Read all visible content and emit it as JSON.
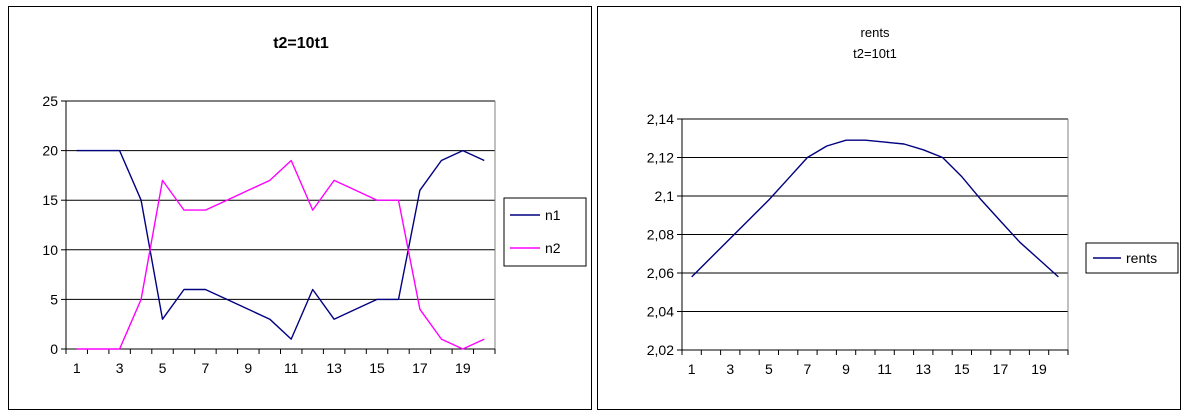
{
  "chart_data": [
    {
      "type": "line",
      "title": "t2=10t1",
      "x": [
        1,
        2,
        3,
        4,
        5,
        6,
        7,
        8,
        9,
        10,
        11,
        12,
        13,
        14,
        15,
        16,
        17,
        18,
        19,
        20
      ],
      "x_tick_labels": [
        "1",
        "3",
        "5",
        "7",
        "9",
        "11",
        "13",
        "15",
        "17",
        "19"
      ],
      "y_tick_labels": [
        "0",
        "5",
        "10",
        "15",
        "20",
        "25"
      ],
      "ylim": [
        0,
        25
      ],
      "grid": true,
      "legend_position": "right",
      "series": [
        {
          "name": "n1",
          "color": "#000080",
          "values": [
            20,
            20,
            20,
            15,
            3,
            6,
            6,
            5,
            4,
            3,
            1,
            6,
            3,
            4,
            5,
            5,
            16,
            19,
            20,
            19
          ]
        },
        {
          "name": "n2",
          "color": "#ff00ff",
          "values": [
            0,
            0,
            0,
            5,
            17,
            14,
            14,
            15,
            16,
            17,
            19,
            14,
            17,
            16,
            15,
            15,
            4,
            1,
            0,
            1
          ]
        }
      ]
    },
    {
      "type": "line",
      "title": "rents",
      "subtitle": "t2=10t1",
      "x": [
        1,
        2,
        3,
        4,
        5,
        6,
        7,
        8,
        9,
        10,
        11,
        12,
        13,
        14,
        15,
        16,
        17,
        18,
        19,
        20
      ],
      "x_tick_labels": [
        "1",
        "3",
        "5",
        "7",
        "9",
        "11",
        "13",
        "15",
        "17",
        "19"
      ],
      "y_tick_labels": [
        "2,02",
        "2,04",
        "2,06",
        "2,08",
        "2,1",
        "2,12",
        "2,14"
      ],
      "ylim": [
        2.02,
        2.14
      ],
      "grid": true,
      "legend_position": "right",
      "series": [
        {
          "name": "rents",
          "color": "#000080",
          "values": [
            2.058,
            2.068,
            2.078,
            2.088,
            2.098,
            2.109,
            2.12,
            2.126,
            2.129,
            2.129,
            2.128,
            2.127,
            2.124,
            2.12,
            2.11,
            2.098,
            2.087,
            2.076,
            2.067,
            2.058
          ]
        }
      ]
    }
  ]
}
